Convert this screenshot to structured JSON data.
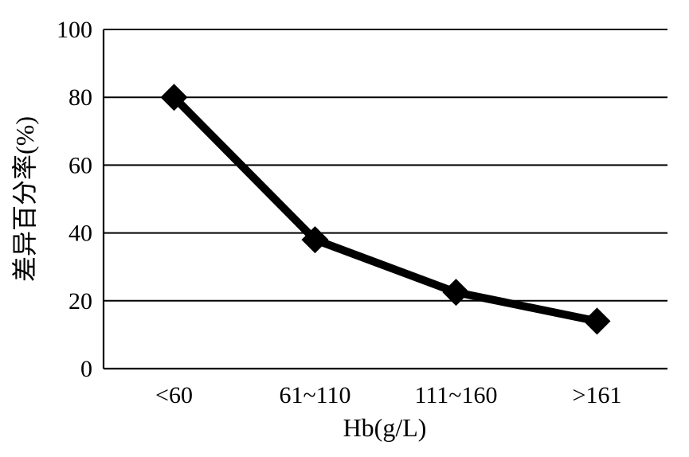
{
  "chart_data": {
    "type": "line",
    "title": "",
    "xlabel": "Hb(g/L)",
    "ylabel": "差异百分率(%)",
    "categories": [
      "<60",
      "61~110",
      "111~160",
      ">161"
    ],
    "series": [
      {
        "values": [
          80,
          38,
          22.5,
          14
        ]
      }
    ],
    "ylim": [
      0,
      100
    ],
    "yticks": [
      0,
      20,
      40,
      60,
      80,
      100
    ],
    "grid": "horizontal",
    "legend": "none",
    "marker": "diamond",
    "line_color": "#000000"
  }
}
